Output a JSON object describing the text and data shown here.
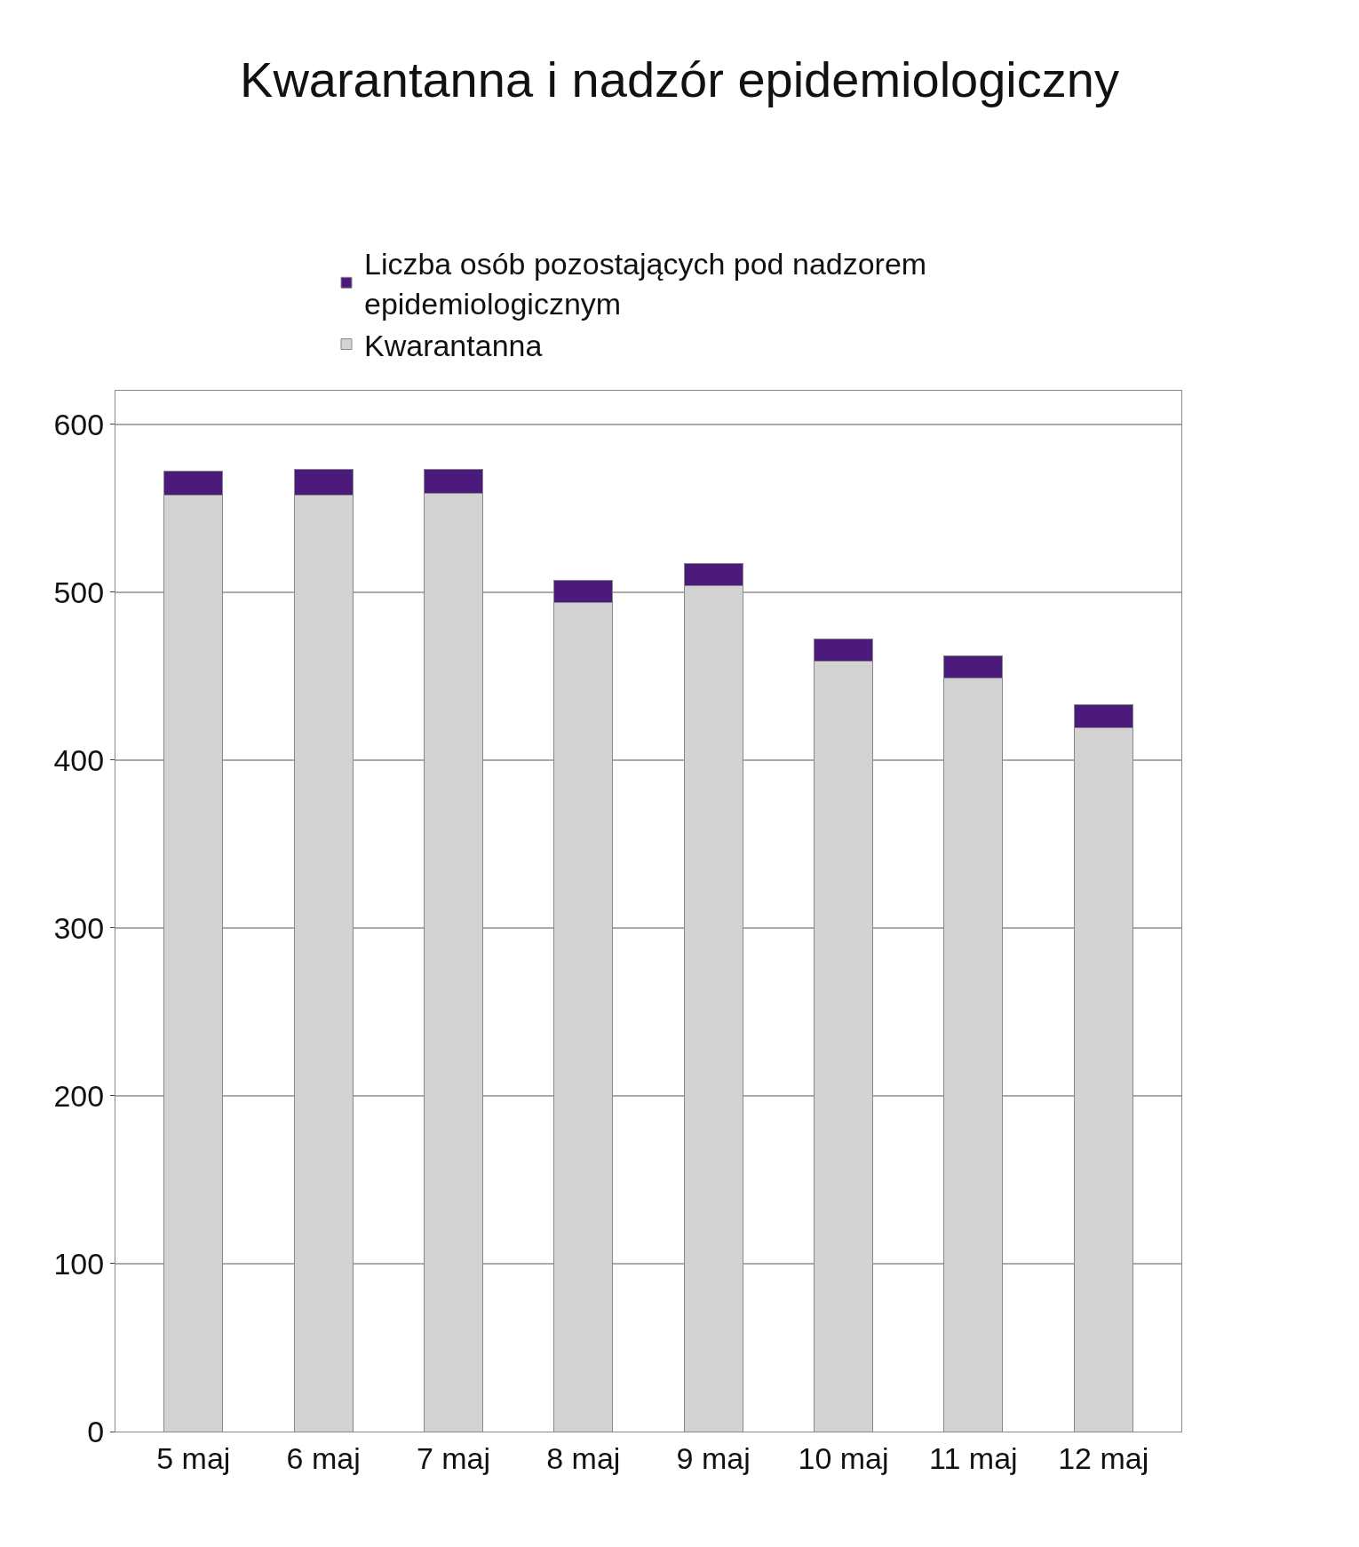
{
  "chart_data": {
    "type": "bar",
    "title": "Kwarantanna i nadzór epidemiologiczny",
    "stacked": true,
    "categories": [
      "5 maj",
      "6 maj",
      "7 maj",
      "8 maj",
      "9 maj",
      "10 maj",
      "11 maj",
      "12 maj"
    ],
    "series": [
      {
        "name": "Kwarantanna",
        "color": "#d3d3d3",
        "values": [
          558,
          558,
          559,
          494,
          504,
          459,
          449,
          419
        ]
      },
      {
        "name": "Liczba osób pozostających pod nadzorem epidemiologicznym",
        "color": "#4b1a7a",
        "values": [
          14,
          15,
          14,
          13,
          13,
          13,
          13,
          14
        ]
      }
    ],
    "ylim": [
      0,
      620
    ],
    "yticks": [
      0,
      100,
      200,
      300,
      400,
      500,
      600
    ],
    "grid": "y",
    "legend": "top"
  }
}
